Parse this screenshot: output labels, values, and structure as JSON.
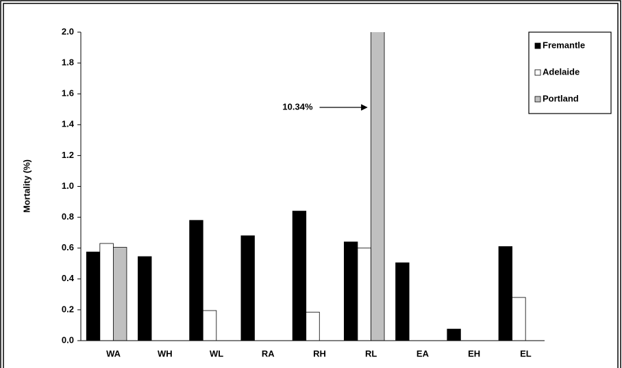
{
  "chart_data": {
    "type": "bar",
    "categories": [
      "WA",
      "WH",
      "WL",
      "RA",
      "RH",
      "RL",
      "EA",
      "EH",
      "EL"
    ],
    "series": [
      {
        "name": "Fremantle",
        "color": "#000000",
        "values": [
          0.575,
          0.545,
          0.78,
          0.68,
          0.84,
          0.64,
          0.505,
          0.075,
          0.61
        ]
      },
      {
        "name": "Adelaide",
        "color": "#ffffff",
        "values": [
          0.63,
          0,
          0.195,
          0,
          0.185,
          0.6,
          0,
          0,
          0.28
        ]
      },
      {
        "name": "Portland",
        "color": "#c0c0c0",
        "values": [
          0.605,
          0,
          0,
          0,
          0,
          10.34,
          0,
          0,
          0
        ],
        "value_labels": [
          null,
          null,
          null,
          null,
          null,
          "10.34%",
          null,
          null,
          null
        ]
      }
    ],
    "y_label": "Mortality (%)",
    "ylim": [
      0,
      2
    ],
    "yticks": [
      {
        "value": 0,
        "label": "0.0"
      },
      {
        "value": 0.2,
        "label": "0.2"
      },
      {
        "value": 0.4,
        "label": "0.4"
      },
      {
        "value": 0.6,
        "label": "0.6"
      },
      {
        "value": 0.8,
        "label": "0.8"
      },
      {
        "value": 1,
        "label": "1.0"
      },
      {
        "value": 1.2,
        "label": "1.2"
      },
      {
        "value": 1.4,
        "label": "1.4"
      },
      {
        "value": 1.6,
        "label": "1.6"
      },
      {
        "value": 1.8,
        "label": "1.8"
      },
      {
        "value": 2,
        "label": "2.0"
      }
    ],
    "legend": "upper right"
  }
}
